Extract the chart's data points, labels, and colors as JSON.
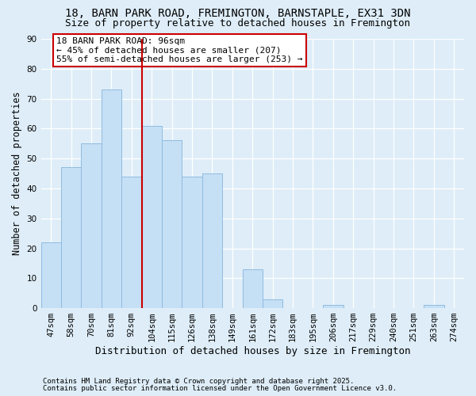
{
  "title1": "18, BARN PARK ROAD, FREMINGTON, BARNSTAPLE, EX31 3DN",
  "title2": "Size of property relative to detached houses in Fremington",
  "xlabel": "Distribution of detached houses by size in Fremington",
  "ylabel": "Number of detached properties",
  "categories": [
    "47sqm",
    "58sqm",
    "70sqm",
    "81sqm",
    "92sqm",
    "104sqm",
    "115sqm",
    "126sqm",
    "138sqm",
    "149sqm",
    "161sqm",
    "172sqm",
    "183sqm",
    "195sqm",
    "206sqm",
    "217sqm",
    "229sqm",
    "240sqm",
    "251sqm",
    "263sqm",
    "274sqm"
  ],
  "values": [
    22,
    47,
    55,
    73,
    44,
    61,
    56,
    44,
    45,
    0,
    13,
    3,
    0,
    0,
    1,
    0,
    0,
    0,
    0,
    1,
    0
  ],
  "bar_color": "#c5dff5",
  "bar_edge_color": "#90bce0",
  "vline_x": 4.5,
  "vline_color": "#cc0000",
  "annotation_text": "18 BARN PARK ROAD: 96sqm\n← 45% of detached houses are smaller (207)\n55% of semi-detached houses are larger (253) →",
  "annotation_box_color": "#ffffff",
  "annotation_box_edge": "#cc0000",
  "ylim": [
    0,
    90
  ],
  "yticks": [
    0,
    10,
    20,
    30,
    40,
    50,
    60,
    70,
    80,
    90
  ],
  "footnote1": "Contains HM Land Registry data © Crown copyright and database right 2025.",
  "footnote2": "Contains public sector information licensed under the Open Government Licence v3.0.",
  "background_color": "#deedf8",
  "plot_bg_color": "#deedf8",
  "grid_color": "#ffffff",
  "title1_fontsize": 10,
  "title2_fontsize": 9,
  "xlabel_fontsize": 9,
  "ylabel_fontsize": 8.5,
  "tick_fontsize": 7.5,
  "footnote_fontsize": 6.5,
  "ann_fontsize": 8
}
